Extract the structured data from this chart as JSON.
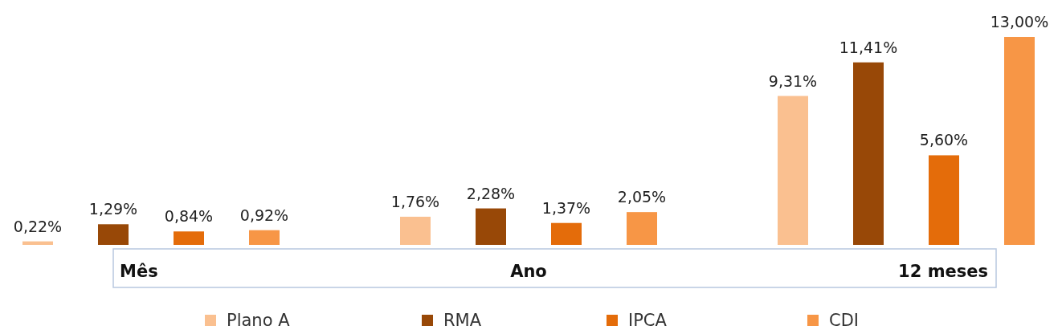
{
  "chart_data": {
    "type": "bar",
    "categories": [
      "Mês",
      "Ano",
      "12 meses"
    ],
    "series": [
      {
        "name": "Plano A",
        "color": "#fac090",
        "values": [
          0.22,
          1.76,
          9.31
        ],
        "value_labels": [
          "0,22%",
          "1,76%",
          "9,31%"
        ]
      },
      {
        "name": "RMA",
        "color": "#984807",
        "values": [
          1.29,
          2.28,
          11.41
        ],
        "value_labels": [
          "1,29%",
          "2,28%",
          "11,41%"
        ]
      },
      {
        "name": "IPCA",
        "color": "#e46c0a",
        "values": [
          0.84,
          1.37,
          5.6
        ],
        "value_labels": [
          "0,84%",
          "1,37%",
          "5,60%"
        ]
      },
      {
        "name": "CDI",
        "color": "#f79646",
        "values": [
          0.92,
          2.05,
          13.0
        ],
        "value_labels": [
          "0,92%",
          "2,05%",
          "13,00%"
        ]
      }
    ],
    "legend": "bottom"
  }
}
